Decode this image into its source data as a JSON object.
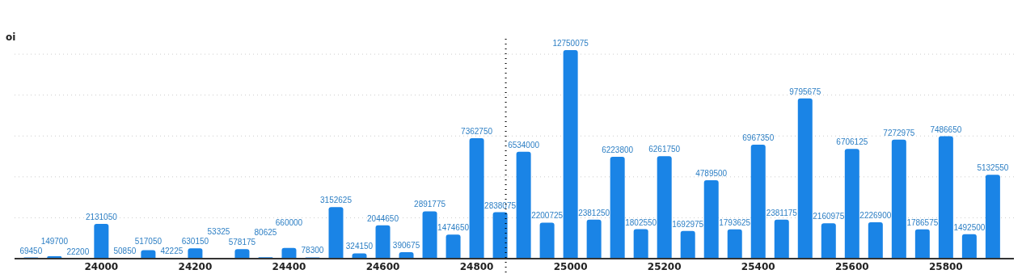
{
  "chart_data": {
    "type": "bar",
    "ylabel": "oi",
    "x": [
      23850,
      23900,
      23950,
      24000,
      24050,
      24100,
      24150,
      24200,
      24250,
      24300,
      24350,
      24400,
      24450,
      24500,
      24550,
      24600,
      24650,
      24700,
      24750,
      24800,
      24850,
      24900,
      24950,
      25000,
      25050,
      25100,
      25150,
      25200,
      25250,
      25300,
      25350,
      25400,
      25450,
      25500,
      25550,
      25600,
      25650,
      25700,
      25750,
      25800,
      25850,
      25900
    ],
    "series": [
      {
        "color": "#1a84e6",
        "values": [
          69450,
          149700,
          22200,
          2131050,
          50850,
          517050,
          42225,
          630150,
          53325,
          578175,
          80625,
          660000,
          78300,
          3152625,
          324150,
          2044650,
          390675,
          2891775,
          1474650,
          7362750,
          2838075,
          6534000,
          2200725,
          12750075,
          2381250,
          6223800,
          1802550,
          6261750,
          1692975,
          4789500,
          1793625,
          6967350,
          2381175,
          9795675,
          2160975,
          6706125,
          2226900,
          7272975,
          1786575,
          7486650,
          1492500,
          5132550
        ]
      }
    ],
    "xlim": [
      23815,
      25945
    ],
    "xticks": [
      24000,
      24200,
      24400,
      24600,
      24800,
      25000,
      25200,
      25400,
      25600,
      25800
    ],
    "yticks": [
      {
        "value": 0,
        "label": null
      },
      {
        "value": 2500000,
        "label": null
      },
      {
        "value": 5000000,
        "label": null
      },
      {
        "value": 7500000,
        "label": null
      },
      {
        "value": 10000000,
        "label": null
      },
      {
        "value": 12500000,
        "label": null
      }
    ],
    "tick_labels": "x",
    "grid": "y",
    "data_labels": true,
    "ref_lines": [
      {
        "axis": "x",
        "value": 24862,
        "line_style": "dotted",
        "color": "#000000"
      }
    ]
  }
}
